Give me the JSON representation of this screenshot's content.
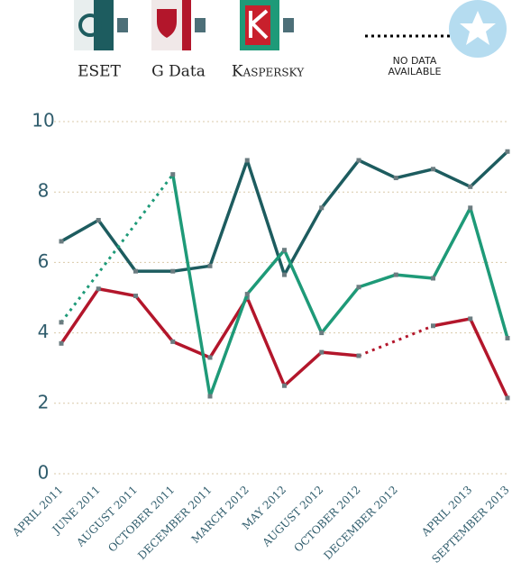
{
  "legend_note": "NO DATA AVAILABLE",
  "chart_data": {
    "type": "line",
    "categories": [
      "APRIL 2011",
      "JUNE 2011",
      "AUGUST 2011",
      "OCTOBER 2011",
      "DECEMBER 2011",
      "MARCH 2012",
      "MAY 2012",
      "AUGUST 2012",
      "OCTOBER 2012",
      "DECEMBER 2012",
      null,
      "APRIL 2013",
      "SEPTEMBER 2013"
    ],
    "series": [
      {
        "name": "ESET",
        "color": "#1d5c5f",
        "values": [
          6.6,
          7.2,
          5.75,
          5.75,
          5.9,
          8.9,
          5.65,
          7.55,
          8.9,
          8.4,
          8.65,
          8.15,
          9.15
        ]
      },
      {
        "name": "G Data",
        "color": "#b3162b",
        "values": [
          3.7,
          5.25,
          5.05,
          3.75,
          3.3,
          5.0,
          2.5,
          3.45,
          3.35,
          null,
          4.2,
          4.4,
          2.15
        ]
      },
      {
        "name": "Kaspersky",
        "color": "#1e9a78",
        "values": [
          4.3,
          null,
          null,
          8.5,
          2.2,
          5.1,
          6.35,
          4.0,
          5.3,
          5.65,
          5.55,
          7.55,
          3.85
        ]
      }
    ],
    "ylim": [
      0,
      10
    ],
    "yticks": [
      0,
      2,
      4,
      6,
      8,
      10
    ],
    "grid": true
  }
}
